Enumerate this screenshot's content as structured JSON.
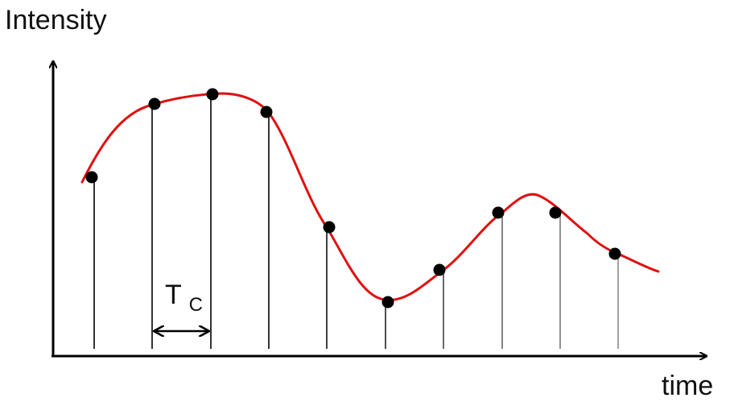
{
  "labels": {
    "y_axis": "Intensity",
    "x_axis": "time",
    "interval_main": "T",
    "interval_sub": "C"
  },
  "colors": {
    "curve": "#e01010",
    "axes": "#000000",
    "samples": "#000000"
  },
  "sample_count": 10
}
